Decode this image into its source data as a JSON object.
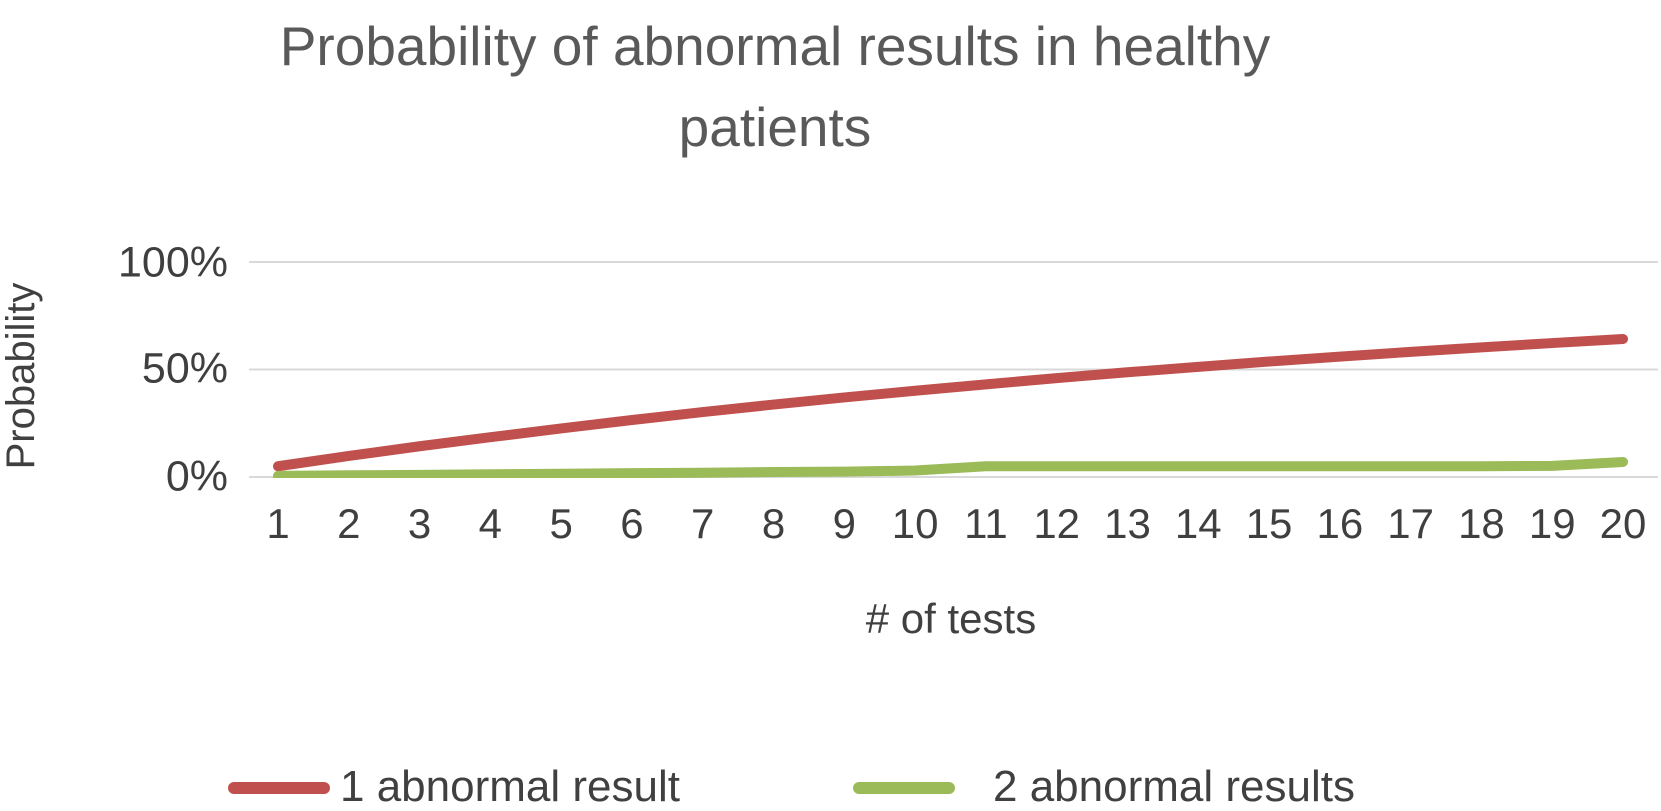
{
  "chart_data": {
    "type": "line",
    "title": "Probability of abnormal results in healthy patients",
    "xlabel": "# of tests",
    "ylabel": "Probability",
    "x": [
      1,
      2,
      3,
      4,
      5,
      6,
      7,
      8,
      9,
      10,
      11,
      12,
      13,
      14,
      15,
      16,
      17,
      18,
      19,
      20
    ],
    "ylim": [
      0,
      100
    ],
    "y_ticks": [
      {
        "label": "100%",
        "value": 100
      },
      {
        "label": "50%",
        "value": 50
      },
      {
        "label": "0%",
        "value": 0
      }
    ],
    "grid": "horizontal",
    "gridline_color": "#d9d9d9",
    "legend_position": "bottom",
    "title_color": "#595959",
    "axis_text_color": "#404040",
    "series": [
      {
        "name": "1 abnormal result",
        "color": "#c0504d",
        "values": [
          5.0,
          9.8,
          14.3,
          18.5,
          22.6,
          26.5,
          30.2,
          33.7,
          37.0,
          40.1,
          43.1,
          46.0,
          48.7,
          51.2,
          53.7,
          56.0,
          58.2,
          60.3,
          62.3,
          64.2
        ]
      },
      {
        "name": "2 abnormal results",
        "color": "#9bbb59",
        "values": [
          0.5,
          0.8,
          1.0,
          1.3,
          1.5,
          1.8,
          2.0,
          2.3,
          2.5,
          3.0,
          5.0,
          5.0,
          5.0,
          5.0,
          5.0,
          5.0,
          5.0,
          5.0,
          5.2,
          7.0
        ]
      }
    ]
  }
}
